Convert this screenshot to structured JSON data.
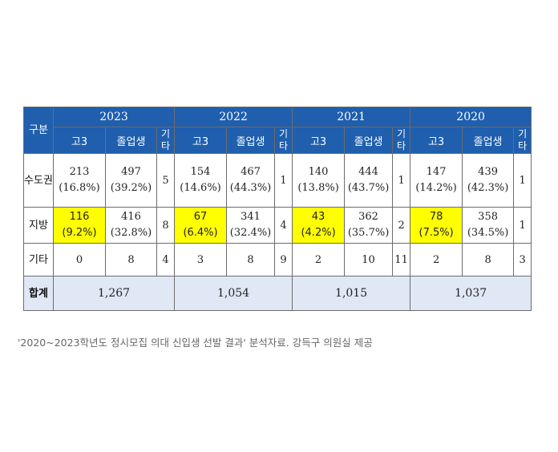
{
  "table": {
    "header_label": "구분",
    "years": [
      "2023",
      "2022",
      "2021",
      "2020"
    ],
    "sub_headers": {
      "high_school": "고3",
      "graduates": "졸업생",
      "other": "기타"
    },
    "rows": [
      {
        "label": "수도권",
        "cells": [
          {
            "hs": "213",
            "hs_pct": "(16.8%)",
            "grad": "497",
            "grad_pct": "(39.2%)",
            "other": "5"
          },
          {
            "hs": "154",
            "hs_pct": "(14.6%)",
            "grad": "467",
            "grad_pct": "(44.3%)",
            "other": "1"
          },
          {
            "hs": "140",
            "hs_pct": "(13.8%)",
            "grad": "444",
            "grad_pct": "(43.7%)",
            "other": "1"
          },
          {
            "hs": "147",
            "hs_pct": "(14.2%)",
            "grad": "439",
            "grad_pct": "(42.3%)",
            "other": "1"
          }
        ]
      },
      {
        "label": "지방",
        "cells": [
          {
            "hs": "116",
            "hs_pct": "(9.2%)",
            "grad": "416",
            "grad_pct": "(32.8%)",
            "other": "8"
          },
          {
            "hs": "67",
            "hs_pct": "(6.4%)",
            "grad": "341",
            "grad_pct": "(32.4%)",
            "other": "4"
          },
          {
            "hs": "43",
            "hs_pct": "(4.2%)",
            "grad": "362",
            "grad_pct": "(35.7%)",
            "other": "2"
          },
          {
            "hs": "78",
            "hs_pct": "(7.5%)",
            "grad": "358",
            "grad_pct": "(34.5%)",
            "other": "1"
          }
        ]
      },
      {
        "label": "기타",
        "cells": [
          {
            "hs": "0",
            "grad": "8",
            "other": "4"
          },
          {
            "hs": "3",
            "grad": "8",
            "other": "9"
          },
          {
            "hs": "2",
            "grad": "10",
            "other": "11"
          },
          {
            "hs": "2",
            "grad": "8",
            "other": "3"
          }
        ]
      }
    ],
    "total": {
      "label": "합계",
      "values": [
        "1,267",
        "1,054",
        "1,015",
        "1,037"
      ]
    }
  },
  "caption": "'2020~2023학년도 정시모집 의대 신입생 선발 결과' 분석자료. 강득구 의원실 제공",
  "colors": {
    "header_bg": "#1f5fae",
    "highlight": "#ffff00",
    "total_bg": "#e0e8f5"
  }
}
